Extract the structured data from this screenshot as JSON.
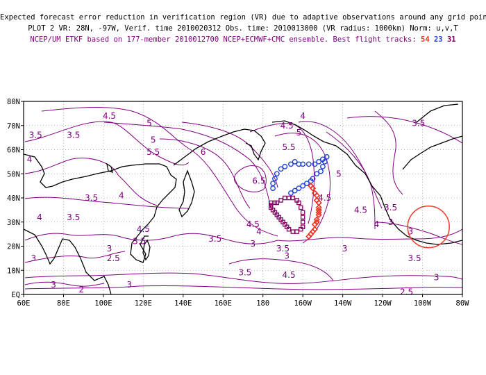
{
  "header": {
    "line1": "Expected forecast error reduction in verification region (VR) due to adaptive observations around any grid point.",
    "line2": "PLOT 2 VR: 28N, -97W, Verif. time 2010020312 Obs. time: 2010013000 (VR radius: 1000km) Norm: u,v,T",
    "line3_prefix": "NCEP/UM ETKF based on 177-member 2010012700 NCEP+ECMWF+CMC ensemble. Best flight tracks: ",
    "track_a": "54",
    "track_b": "23",
    "track_c": "31"
  },
  "colors": {
    "contour": "#800080",
    "track_red": "#ee3322",
    "track_blue": "#2040e0",
    "track_purple": "#800060",
    "grid": "#999999",
    "coast": "#000000"
  },
  "axes": {
    "x_ticks": [
      "60E",
      "80E",
      "100E",
      "120E",
      "140E",
      "160E",
      "180",
      "160W",
      "140W",
      "120W",
      "100W",
      "80W"
    ],
    "y_ticks": [
      "EQ",
      "10N",
      "20N",
      "30N",
      "40N",
      "50N",
      "60N",
      "70N",
      "80N"
    ]
  },
  "contour_labels": [
    {
      "text": "4.5",
      "lon": 103,
      "lat": 74
    },
    {
      "text": "3.5",
      "lon": 85,
      "lat": 66
    },
    {
      "text": "3.5",
      "lon": 66,
      "lat": 66
    },
    {
      "text": "4",
      "lon": 63,
      "lat": 56
    },
    {
      "text": "5",
      "lon": 123,
      "lat": 71
    },
    {
      "text": "5",
      "lon": 125,
      "lat": 64
    },
    {
      "text": "5.5",
      "lon": 125,
      "lat": 59
    },
    {
      "text": "6",
      "lon": 150,
      "lat": 59
    },
    {
      "text": "5.5",
      "lon": 193,
      "lat": 61
    },
    {
      "text": "5",
      "lon": 198,
      "lat": 67
    },
    {
      "text": "4",
      "lon": 200,
      "lat": 74
    },
    {
      "text": "4.5",
      "lon": 192,
      "lat": 70
    },
    {
      "text": "6.5",
      "lon": 178,
      "lat": 47
    },
    {
      "text": "4.5",
      "lon": 211,
      "lat": 40
    },
    {
      "text": "5",
      "lon": 218,
      "lat": 50
    },
    {
      "text": "4.5",
      "lon": 229,
      "lat": 35
    },
    {
      "text": "3.5",
      "lon": 258,
      "lat": 71
    },
    {
      "text": "3.5",
      "lon": 94,
      "lat": 40
    },
    {
      "text": "4",
      "lon": 109,
      "lat": 41
    },
    {
      "text": "3.5",
      "lon": 85,
      "lat": 32
    },
    {
      "text": "4",
      "lon": 68,
      "lat": 32
    },
    {
      "text": "4.5",
      "lon": 120,
      "lat": 27
    },
    {
      "text": "4.5",
      "lon": 175,
      "lat": 29
    },
    {
      "text": "4",
      "lon": 178,
      "lat": 26
    },
    {
      "text": "3.5",
      "lon": 156,
      "lat": 23
    },
    {
      "text": "3",
      "lon": 175,
      "lat": 21
    },
    {
      "text": "3.5",
      "lon": 190,
      "lat": 19
    },
    {
      "text": "3",
      "lon": 192,
      "lat": 16
    },
    {
      "text": "3.5",
      "lon": 118,
      "lat": 22
    },
    {
      "text": "3",
      "lon": 103,
      "lat": 19
    },
    {
      "text": "2.5",
      "lon": 105,
      "lat": 15
    },
    {
      "text": "3",
      "lon": 65,
      "lat": 15
    },
    {
      "text": "4.5",
      "lon": 193,
      "lat": 8
    },
    {
      "text": "3.5",
      "lon": 171,
      "lat": 9
    },
    {
      "text": "3",
      "lon": 221,
      "lat": 19
    },
    {
      "text": "3",
      "lon": 244,
      "lat": 30
    },
    {
      "text": "3.5",
      "lon": 244,
      "lat": 36
    },
    {
      "text": "3",
      "lon": 254,
      "lat": 26
    },
    {
      "text": "4",
      "lon": 237,
      "lat": 29
    },
    {
      "text": "3.5",
      "lon": 256,
      "lat": 15
    },
    {
      "text": "3",
      "lon": 267,
      "lat": 7
    },
    {
      "text": "3",
      "lon": 75,
      "lat": 4
    },
    {
      "text": "2",
      "lon": 89,
      "lat": 2
    },
    {
      "text": "3",
      "lon": 113,
      "lat": 4
    },
    {
      "text": "2.5",
      "lon": 252,
      "lat": 1
    }
  ],
  "tracks": {
    "red": [
      [
        203,
        24
      ],
      [
        204,
        25
      ],
      [
        205,
        26
      ],
      [
        206,
        27
      ],
      [
        206,
        29
      ],
      [
        207,
        30
      ],
      [
        207,
        31
      ],
      [
        208,
        33
      ],
      [
        208,
        34
      ],
      [
        208,
        35
      ],
      [
        208,
        36
      ],
      [
        208,
        38
      ],
      [
        207,
        39
      ],
      [
        207,
        41
      ],
      [
        206,
        42
      ],
      [
        205,
        44
      ],
      [
        204,
        45
      ]
    ],
    "blue": [
      [
        185,
        44
      ],
      [
        185,
        46
      ],
      [
        186,
        48
      ],
      [
        187,
        50
      ],
      [
        189,
        52
      ],
      [
        191,
        53
      ],
      [
        194,
        54
      ],
      [
        196,
        55
      ],
      [
        198,
        54
      ],
      [
        200,
        54
      ],
      [
        203,
        54
      ],
      [
        206,
        54
      ],
      [
        208,
        55
      ],
      [
        210,
        56
      ],
      [
        212,
        57
      ],
      [
        211,
        55
      ],
      [
        210,
        53
      ],
      [
        209,
        51
      ],
      [
        207,
        50
      ],
      [
        205,
        48
      ],
      [
        204,
        47
      ],
      [
        202,
        46
      ],
      [
        200,
        45
      ],
      [
        198,
        44
      ],
      [
        196,
        43
      ],
      [
        194,
        42
      ]
    ],
    "purple": [
      [
        184,
        38
      ],
      [
        184,
        37
      ],
      [
        184,
        36
      ],
      [
        185,
        35
      ],
      [
        186,
        34
      ],
      [
        187,
        33
      ],
      [
        188,
        32
      ],
      [
        189,
        31
      ],
      [
        190,
        30
      ],
      [
        191,
        29
      ],
      [
        192,
        28
      ],
      [
        193,
        27
      ],
      [
        195,
        26
      ],
      [
        197,
        26
      ],
      [
        199,
        27
      ],
      [
        200,
        28
      ],
      [
        200,
        30
      ],
      [
        200,
        32
      ],
      [
        200,
        34
      ],
      [
        199,
        36
      ],
      [
        198,
        38
      ],
      [
        197,
        39
      ],
      [
        195,
        40
      ],
      [
        193,
        40
      ],
      [
        191,
        40
      ],
      [
        189,
        39
      ],
      [
        187,
        38
      ],
      [
        186,
        38
      ]
    ]
  },
  "verification_region": {
    "lat": 28,
    "lon_west": 97
  }
}
